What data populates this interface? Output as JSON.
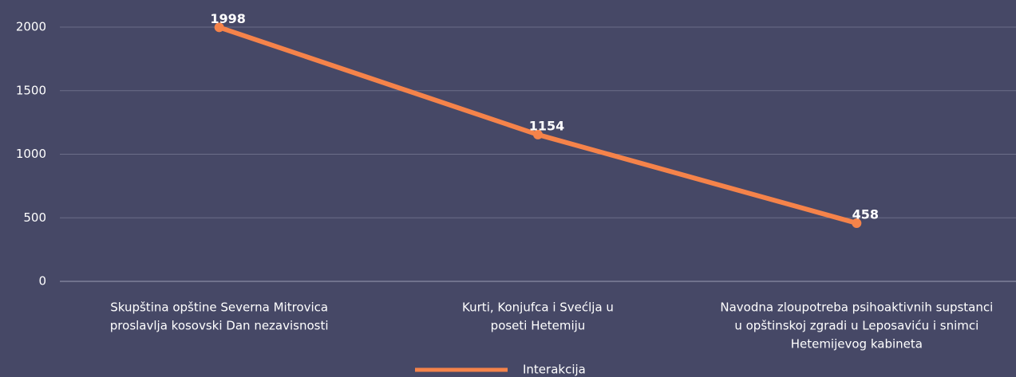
{
  "chart_data": {
    "type": "line",
    "categories": [
      [
        "Skupština opštine Severna Mitrovica",
        "proslavlja kosovski Dan nezavisnosti"
      ],
      [
        "Kurti, Konjufca i Svećlja u",
        "poseti Hetemiju"
      ],
      [
        "Navodna zloupotreba psihoaktivnih supstanci",
        "u opštinskoj zgradi u Leposaviću i snimci",
        "Hetemijevog kabineta"
      ]
    ],
    "series": [
      {
        "name": "Interakcija",
        "color": "#f5834a",
        "values": [
          1998,
          1154,
          458
        ]
      }
    ],
    "ylim": [
      0,
      2000
    ],
    "yticks": [
      0,
      500,
      1000,
      1500,
      2000
    ],
    "grid": true,
    "legend": "bottom"
  }
}
